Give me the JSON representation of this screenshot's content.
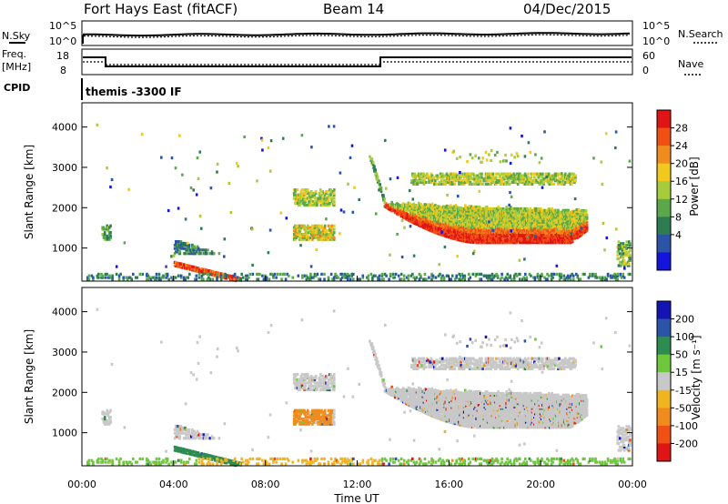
{
  "header": {
    "radar": "Fort Hays East (fitACF)",
    "beam": "Beam 14",
    "date": "04/Dec/2015"
  },
  "status_panels": {
    "nsky": {
      "label": "N.Sky",
      "ticks": [
        "10^5",
        "10^0"
      ]
    },
    "nsearch": {
      "label": "N.Search",
      "ticks": [
        "10^5",
        "10^0"
      ]
    },
    "freq": {
      "label": "Freq.",
      "unit": "[MHz]",
      "ticks": [
        "18",
        "8"
      ]
    },
    "nave": {
      "label": "Nave",
      "ticks": [
        "60",
        "0"
      ]
    },
    "cpid": {
      "label": "CPID",
      "value": "themis -3300 IF"
    }
  },
  "colors": {
    "power": [
      "#1414dc",
      "#2a54a8",
      "#2e7d52",
      "#5aa84a",
      "#a6cc3c",
      "#f0c81e",
      "#f08c1e",
      "#f05014",
      "#e01414"
    ],
    "velocity": [
      "#e01414",
      "#f05014",
      "#f08c1e",
      "#f0b41e",
      "#c8c8c8",
      "#6ec83c",
      "#2e8c52",
      "#2a54a8",
      "#1414b4"
    ]
  },
  "chart_data": [
    {
      "type": "heatmap",
      "panel": "power",
      "ylabel": "Slant Range [km]",
      "ylim": [
        180,
        4600
      ],
      "yticks": [
        "1000",
        "2000",
        "3000",
        "4000"
      ],
      "ytick_values": [
        1000,
        2000,
        3000,
        4000
      ],
      "colorbar": {
        "label": "Power [dB]",
        "tick_labels": [
          "4",
          "8",
          "12",
          "16",
          "20",
          "24",
          "28"
        ],
        "tick_values": [
          4,
          8,
          12,
          16,
          20,
          24,
          28
        ],
        "range": [
          0,
          32
        ]
      },
      "features": [
        {
          "time_h": [
            13.2,
            22.0
          ],
          "range_km": [
            1200,
            2000
          ],
          "power_db": 26
        },
        {
          "time_h": [
            14.5,
            21.5
          ],
          "range_km": [
            2600,
            2900
          ],
          "power_db": 14
        },
        {
          "time_h": [
            9.2,
            11.0
          ],
          "range_km": [
            1200,
            2500
          ],
          "power_db": 14
        },
        {
          "time_h": [
            4.0,
            7.0
          ],
          "range_km": [
            200,
            1300
          ],
          "power_db": 18
        },
        {
          "time_h": [
            0.8,
            1.2
          ],
          "range_km": [
            1300,
            1600
          ],
          "power_db": 10
        }
      ]
    },
    {
      "type": "heatmap",
      "panel": "velocity",
      "ylabel": "Slant Range [km]",
      "xlabel": "Time UT",
      "xlim": [
        0,
        24
      ],
      "xticks": [
        "00:00",
        "04:00",
        "08:00",
        "12:00",
        "16:00",
        "20:00",
        "00:00"
      ],
      "xtick_values": [
        0,
        4,
        8,
        12,
        16,
        20,
        24
      ],
      "ylim": [
        180,
        4600
      ],
      "yticks": [
        "1000",
        "2000",
        "3000",
        "4000"
      ],
      "ytick_values": [
        1000,
        2000,
        3000,
        4000
      ],
      "colorbar": {
        "label": "Velocity [m s⁻¹]",
        "tick_labels": [
          "200",
          "100",
          "50",
          "15",
          "-15",
          "-50",
          "-100",
          "-200"
        ],
        "tick_values": [
          200,
          100,
          50,
          15,
          -15,
          -50,
          -100,
          -200
        ]
      },
      "features": [
        {
          "time_h": [
            13.2,
            22.0
          ],
          "range_km": [
            1200,
            2900
          ],
          "velocity_ms": 0
        },
        {
          "time_h": [
            9.5,
            10.8
          ],
          "range_km": [
            1000,
            1700
          ],
          "velocity_ms": -60
        },
        {
          "time_h": [
            4.0,
            6.5
          ],
          "range_km": [
            200,
            500
          ],
          "velocity_ms": 60
        }
      ]
    }
  ]
}
